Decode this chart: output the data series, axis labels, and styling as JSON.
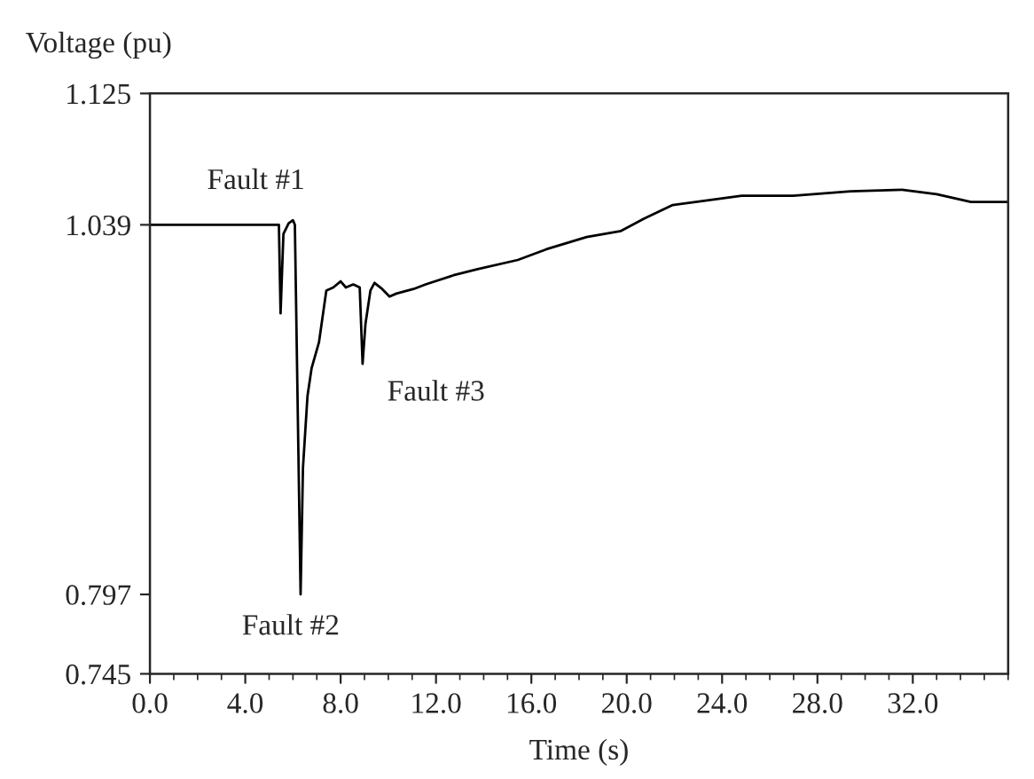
{
  "chart_data": {
    "type": "line",
    "xlabel": "Time (s)",
    "ylabel": "Voltage (pu)",
    "xlim": [
      0,
      36
    ],
    "xticks": [
      {
        "value": 0,
        "label": "0.0"
      },
      {
        "value": 4,
        "label": "4.0"
      },
      {
        "value": 8,
        "label": "8.0"
      },
      {
        "value": 12,
        "label": "12.0"
      },
      {
        "value": 16,
        "label": "16.0"
      },
      {
        "value": 20,
        "label": "20.0"
      },
      {
        "value": 24,
        "label": "24.0"
      },
      {
        "value": 28,
        "label": "28.0"
      },
      {
        "value": 32,
        "label": "32.0"
      }
    ],
    "ylim": [
      0.745,
      1.125
    ],
    "yticks": [
      0.745,
      0.797,
      1.039,
      1.125
    ],
    "grid": false,
    "marker": "none",
    "line_style": "solid",
    "series": [
      {
        "color": "#000000",
        "x": [
          0,
          5.41,
          5.48,
          5.6,
          5.82,
          6.0,
          6.08,
          6.32,
          6.42,
          6.61,
          6.78,
          7.09,
          7.4,
          7.69,
          8.0,
          8.22,
          8.53,
          8.8,
          8.92,
          9.04,
          9.25,
          9.42,
          9.74,
          10.05,
          10.34,
          11.06,
          11.57,
          12.74,
          13.74,
          15.43,
          16.63,
          18.32,
          19.76,
          20.72,
          21.93,
          22.89,
          24.82,
          26.98,
          29.39,
          31.55,
          33.0,
          34.44,
          36.0
        ],
        "values": [
          1.039,
          1.039,
          0.981,
          1.033,
          1.04,
          1.042,
          1.039,
          0.797,
          0.88,
          0.927,
          0.945,
          0.962,
          0.996,
          0.998,
          1.002,
          0.998,
          1.0,
          0.998,
          0.948,
          0.974,
          0.996,
          1.001,
          0.997,
          0.992,
          0.994,
          0.997,
          1.0,
          1.006,
          1.01,
          1.016,
          1.023,
          1.031,
          1.035,
          1.043,
          1.052,
          1.054,
          1.058,
          1.058,
          1.061,
          1.062,
          1.059,
          1.054,
          1.054
        ]
      }
    ],
    "annotations": [
      {
        "text": "Fault #1",
        "x": 5.48,
        "y": 1.039
      },
      {
        "text": "Fault #2",
        "x": 6.32,
        "y": 0.797
      },
      {
        "text": "Fault #3",
        "x": 8.92,
        "y": 0.948
      }
    ]
  }
}
